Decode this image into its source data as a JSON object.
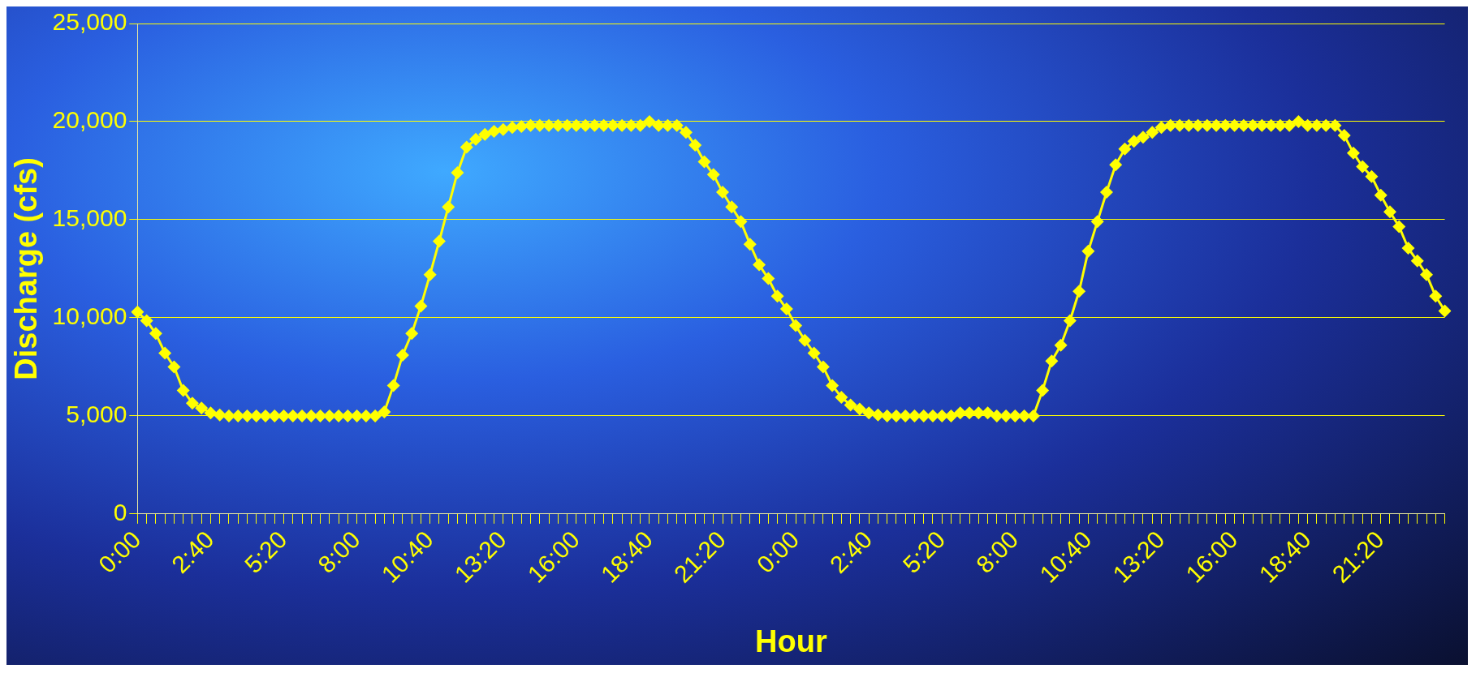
{
  "chart_data": {
    "type": "line",
    "xlabel": "Hour",
    "ylabel": "Discharge (cfs)",
    "categories": [
      "0:00",
      null,
      null,
      null,
      null,
      null,
      null,
      null,
      "2:40",
      null,
      null,
      null,
      null,
      null,
      null,
      null,
      "5:20",
      null,
      null,
      null,
      null,
      null,
      null,
      null,
      "8:00",
      null,
      null,
      null,
      null,
      null,
      null,
      null,
      "10:40",
      null,
      null,
      null,
      null,
      null,
      null,
      null,
      "13:20",
      null,
      null,
      null,
      null,
      null,
      null,
      null,
      "16:00",
      null,
      null,
      null,
      null,
      null,
      null,
      null,
      "18:40",
      null,
      null,
      null,
      null,
      null,
      null,
      null,
      "21:20",
      null,
      null,
      null,
      null,
      null,
      null,
      null,
      "0:00",
      null,
      null,
      null,
      null,
      null,
      null,
      null,
      "2:40",
      null,
      null,
      null,
      null,
      null,
      null,
      null,
      "5:20",
      null,
      null,
      null,
      null,
      null,
      null,
      null,
      "8:00",
      null,
      null,
      null,
      null,
      null,
      null,
      null,
      "10:40",
      null,
      null,
      null,
      null,
      null,
      null,
      null,
      "13:20",
      null,
      null,
      null,
      null,
      null,
      null,
      null,
      "16:00",
      null,
      null,
      null,
      null,
      null,
      null,
      null,
      "18:40",
      null,
      null,
      null,
      null,
      null,
      null,
      null,
      "21:20",
      null,
      null,
      null,
      null,
      null,
      null,
      null
    ],
    "series": [
      {
        "color": "#ffff00",
        "values": [
          10300,
          9850,
          9200,
          8200,
          7500,
          6300,
          5650,
          5400,
          5150,
          5050,
          5000,
          5000,
          5000,
          5000,
          5000,
          5000,
          5000,
          5000,
          5000,
          5000,
          5000,
          5000,
          5000,
          5000,
          5000,
          5000,
          5000,
          5200,
          6550,
          8100,
          9200,
          10600,
          12200,
          13900,
          15650,
          17400,
          18700,
          19100,
          19350,
          19500,
          19600,
          19700,
          19750,
          19800,
          19800,
          19800,
          19800,
          19800,
          19800,
          19800,
          19800,
          19800,
          19800,
          19800,
          19800,
          19800,
          20000,
          19800,
          19800,
          19800,
          19450,
          18800,
          17950,
          17300,
          16400,
          15650,
          14900,
          13750,
          12700,
          12000,
          11100,
          10450,
          9600,
          8850,
          8200,
          7500,
          6550,
          5950,
          5550,
          5350,
          5150,
          5050,
          5000,
          5000,
          5000,
          5000,
          5000,
          5000,
          5000,
          5000,
          5150,
          5150,
          5150,
          5150,
          5000,
          5000,
          5000,
          5000,
          5000,
          6300,
          7800,
          8600,
          9850,
          11350,
          13400,
          14900,
          16400,
          17800,
          18600,
          19000,
          19200,
          19450,
          19700,
          19800,
          19800,
          19800,
          19800,
          19800,
          19800,
          19800,
          19800,
          19800,
          19800,
          19800,
          19800,
          19800,
          19800,
          20000,
          19800,
          19800,
          19800,
          19800,
          19300,
          18400,
          17700,
          17200,
          16250,
          15400,
          14650,
          13550,
          12900,
          12200,
          11100,
          10350
        ]
      }
    ],
    "ylim": [
      0,
      25000
    ],
    "yticks": [
      {
        "value": 0,
        "label": "0"
      },
      {
        "value": 5000,
        "label": "5,000"
      },
      {
        "value": 10000,
        "label": "10,000"
      },
      {
        "value": 15000,
        "label": "15,000"
      },
      {
        "value": 20000,
        "label": "20,000"
      },
      {
        "value": 25000,
        "label": "25,000"
      }
    ],
    "grid": "y",
    "legend": false,
    "marker": "diamond",
    "line_style": "solid"
  }
}
